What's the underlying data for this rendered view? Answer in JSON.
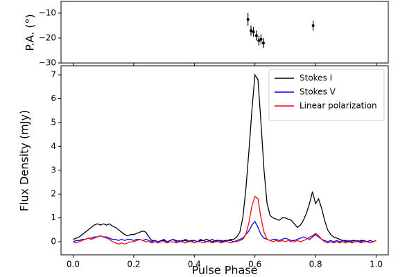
{
  "chart_data": [
    {
      "type": "scatter",
      "ylabel": "P.A. (°)",
      "x": [
        0.577,
        0.587,
        0.595,
        0.605,
        0.613,
        0.62,
        0.628,
        0.792
      ],
      "values": [
        -12.5,
        -17,
        -17.5,
        -19,
        -21,
        -20.5,
        -22,
        -15
      ],
      "errors": [
        2.5,
        2,
        2,
        2,
        2,
        2,
        2,
        2
      ],
      "color": "#000000",
      "xlim": [
        -0.04,
        1.04
      ],
      "ylim": [
        -30,
        -5.3
      ],
      "yticks": [
        {
          "value": -10,
          "label": "−10"
        },
        {
          "value": -20,
          "label": "−20"
        },
        {
          "value": -30,
          "label": "−30"
        }
      ]
    },
    {
      "type": "line",
      "xlabel": "Pulse Phase",
      "ylabel": "Flux Density (mJy)",
      "x": [
        0,
        0.01,
        0.02,
        0.03,
        0.04,
        0.05,
        0.06,
        0.07,
        0.08,
        0.09,
        0.1,
        0.11,
        0.12,
        0.13,
        0.14,
        0.15,
        0.16,
        0.17,
        0.18,
        0.19,
        0.2,
        0.21,
        0.22,
        0.23,
        0.24,
        0.25,
        0.26,
        0.27,
        0.28,
        0.29,
        0.3,
        0.31,
        0.32,
        0.33,
        0.34,
        0.35,
        0.36,
        0.37,
        0.38,
        0.39,
        0.4,
        0.41,
        0.42,
        0.43,
        0.44,
        0.45,
        0.46,
        0.47,
        0.48,
        0.49,
        0.5,
        0.51,
        0.52,
        0.53,
        0.54,
        0.55,
        0.56,
        0.57,
        0.58,
        0.59,
        0.6,
        0.61,
        0.62,
        0.63,
        0.64,
        0.65,
        0.66,
        0.67,
        0.68,
        0.69,
        0.7,
        0.71,
        0.72,
        0.73,
        0.74,
        0.75,
        0.76,
        0.77,
        0.78,
        0.79,
        0.8,
        0.81,
        0.82,
        0.83,
        0.84,
        0.85,
        0.86,
        0.87,
        0.88,
        0.89,
        0.9,
        0.91,
        0.92,
        0.93,
        0.94,
        0.95,
        0.96,
        0.97,
        0.98,
        0.99,
        1
      ],
      "series": [
        {
          "name": "Stokes I",
          "color": "#000000",
          "values": [
            0.1,
            0.15,
            0.2,
            0.3,
            0.4,
            0.5,
            0.6,
            0.7,
            0.75,
            0.7,
            0.75,
            0.7,
            0.75,
            0.65,
            0.6,
            0.5,
            0.4,
            0.3,
            0.25,
            0.3,
            0.3,
            0.35,
            0.4,
            0.45,
            0.4,
            0.2,
            0.05,
            0.05,
            0.0,
            0.05,
            0.05,
            0.0,
            0.05,
            0.1,
            0.05,
            0.0,
            0.05,
            0.05,
            0.0,
            0.05,
            0.05,
            0.0,
            0.05,
            0.05,
            0.1,
            0.05,
            0.0,
            0.05,
            0.05,
            0.0,
            0.05,
            0.05,
            0.1,
            0.1,
            0.2,
            0.4,
            1.0,
            2.2,
            3.8,
            5.5,
            7.0,
            6.8,
            5.0,
            3.0,
            1.6,
            1.1,
            1.0,
            0.95,
            0.9,
            1.0,
            1.0,
            0.95,
            0.9,
            0.75,
            0.6,
            0.7,
            0.9,
            1.2,
            1.6,
            2.1,
            1.6,
            1.8,
            1.4,
            0.9,
            0.5,
            0.3,
            0.2,
            0.15,
            0.1,
            0.05,
            0.05,
            0.0,
            0.05,
            0.05,
            0.0,
            0.05,
            0.05,
            0.0,
            0.05,
            0.0,
            0.05
          ]
        },
        {
          "name": "Stokes V",
          "color": "#0000ff",
          "values": [
            0.0,
            0.05,
            0.05,
            0.1,
            0.1,
            0.15,
            0.15,
            0.2,
            0.2,
            0.25,
            0.2,
            0.2,
            0.15,
            0.1,
            0.1,
            0.05,
            0.1,
            0.05,
            0.1,
            0.1,
            0.05,
            0.1,
            0.1,
            0.05,
            0.1,
            0.05,
            0.0,
            0.05,
            0.0,
            0.05,
            0.1,
            0.0,
            0.05,
            0.1,
            0.0,
            0.05,
            0.0,
            0.1,
            0.05,
            0.0,
            0.05,
            0.0,
            0.1,
            0.05,
            0.0,
            0.05,
            0.1,
            0.0,
            0.05,
            0.05,
            0.0,
            0.05,
            0.05,
            0.0,
            0.05,
            0.1,
            0.15,
            0.3,
            0.45,
            0.7,
            0.85,
            0.6,
            0.3,
            0.15,
            0.1,
            0.05,
            0.1,
            0.1,
            0.05,
            0.1,
            0.15,
            0.1,
            0.05,
            0.05,
            0.1,
            0.15,
            0.2,
            0.15,
            0.1,
            0.2,
            0.3,
            0.2,
            0.1,
            0.05,
            0.0,
            0.05,
            0.0,
            0.05,
            0.0,
            0.05,
            0.0,
            0.05,
            0.0,
            0.0,
            0.05,
            0.0,
            0.05,
            0.0,
            0.05,
            0.0,
            0.05
          ]
        },
        {
          "name": "Linear polarization",
          "color": "#ff0000",
          "values": [
            0.0,
            -0.05,
            0.0,
            0.05,
            0.1,
            0.15,
            0.1,
            0.15,
            0.2,
            0.25,
            0.2,
            0.15,
            0.1,
            0.0,
            -0.05,
            -0.1,
            -0.05,
            -0.1,
            -0.05,
            0.0,
            0.0,
            0.05,
            0.1,
            0.05,
            0.0,
            0.0,
            -0.05,
            0.0,
            -0.05,
            0.0,
            0.0,
            -0.05,
            0.0,
            0.0,
            -0.05,
            0.0,
            0.0,
            -0.05,
            0.0,
            0.0,
            -0.05,
            0.0,
            0.0,
            -0.05,
            0.0,
            0.0,
            -0.05,
            0.0,
            0.0,
            -0.05,
            0.0,
            0.0,
            -0.05,
            0.0,
            0.0,
            0.05,
            0.1,
            0.3,
            0.8,
            1.5,
            1.9,
            1.8,
            1.0,
            0.4,
            0.1,
            0.05,
            0.0,
            0.05,
            0.0,
            0.05,
            0.0,
            0.05,
            0.0,
            0.0,
            0.05,
            0.0,
            0.05,
            0.1,
            0.2,
            0.25,
            0.35,
            0.25,
            0.1,
            0.0,
            -0.05,
            0.0,
            -0.05,
            0.0,
            -0.05,
            0.0,
            -0.05,
            0.0,
            -0.05,
            0.0,
            0.0,
            -0.05,
            0.0,
            0.0,
            -0.05,
            0.0,
            0.05
          ]
        }
      ],
      "xlim": [
        -0.04,
        1.04
      ],
      "ylim": [
        -0.55,
        7.38
      ],
      "xticks": [
        {
          "value": 0,
          "label": "0.0"
        },
        0.2,
        0.4,
        0.6,
        0.8,
        {
          "value": 1,
          "label": "1.0"
        }
      ],
      "yticks": [
        0,
        1,
        2,
        3,
        4,
        5,
        6,
        7
      ],
      "legend": "upper right"
    }
  ]
}
